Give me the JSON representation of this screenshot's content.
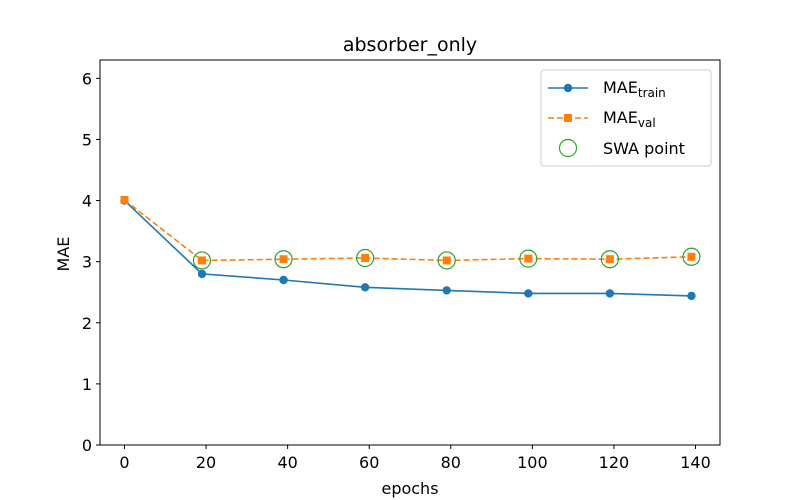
{
  "chart_data": {
    "type": "line",
    "title": "absorber_only",
    "xlabel": "epochs",
    "ylabel": "MAE",
    "xlim": [
      -6,
      146
    ],
    "ylim": [
      0,
      6.3
    ],
    "x_ticks": [
      0,
      20,
      40,
      60,
      80,
      100,
      120,
      140
    ],
    "y_ticks": [
      0,
      1,
      2,
      3,
      4,
      5,
      6
    ],
    "grid": false,
    "legend_position": "top-right",
    "series": [
      {
        "name": "MAE_train",
        "label_main": "MAE",
        "label_sub": "train",
        "color": "#1f77b4",
        "marker": "circle",
        "linestyle": "solid",
        "x": [
          0,
          19,
          39,
          59,
          79,
          99,
          119,
          139
        ],
        "y": [
          4.0,
          2.8,
          2.7,
          2.58,
          2.53,
          2.48,
          2.48,
          2.44
        ]
      },
      {
        "name": "MAE_val",
        "label_main": "MAE",
        "label_sub": "val",
        "color": "#ff7f0e",
        "marker": "square",
        "linestyle": "dashed",
        "x": [
          0,
          19,
          39,
          59,
          79,
          99,
          119,
          139
        ],
        "y": [
          4.01,
          3.02,
          3.04,
          3.06,
          3.02,
          3.05,
          3.04,
          3.08
        ]
      }
    ],
    "swa_points": {
      "name": "SWA point",
      "label_main": "SWA point",
      "color": "#2ca02c",
      "marker": "open-circle",
      "x": [
        19,
        39,
        59,
        79,
        99,
        119,
        139
      ],
      "y": [
        3.02,
        3.04,
        3.06,
        3.02,
        3.05,
        3.04,
        3.08
      ]
    }
  }
}
